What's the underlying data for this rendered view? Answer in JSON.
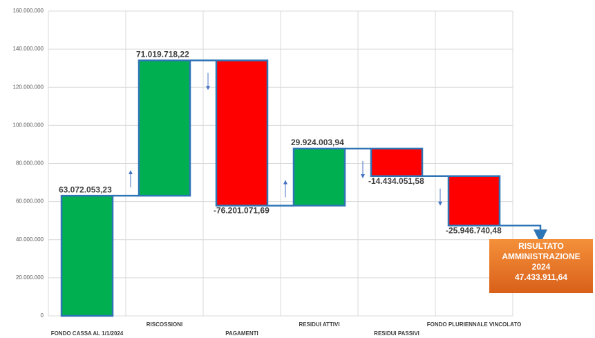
{
  "chart_data": {
    "type": "waterfall",
    "categories": [
      "FONDO CASSA AL 1/1/2024",
      "RISCOSSIONI",
      "PAGAMENTI",
      "RESIDUI ATTIVI",
      "RESIDUI PASSIVI",
      "FONDO PLURIENNALE VINCOLATO"
    ],
    "values": [
      63072053.23,
      71019718.22,
      -76201071.69,
      29924003.94,
      -14434051.58,
      -25946740.48
    ],
    "value_labels": [
      "63.072.053,23",
      "71.019.718,22",
      "-76.201.071,69",
      "29.924.003,94",
      "-14.434.051,58",
      "-25.946.740,48"
    ],
    "positive_color": "#00b050",
    "negative_color": "#ff0000",
    "outline_color": "#2e75b6",
    "ylim": [
      0,
      160000000
    ],
    "yticks": [
      0,
      {
        "value": 20000000,
        "label": "20.000.000"
      },
      {
        "value": 40000000,
        "label": "40.000.000"
      },
      {
        "value": 60000000,
        "label": "60.000.000"
      },
      {
        "value": 80000000,
        "label": "80.000.000"
      },
      {
        "value": 100000000,
        "label": "100.000.000"
      },
      {
        "value": 120000000,
        "label": "120.000.000"
      },
      {
        "value": 140000000,
        "label": "140.000.000"
      },
      {
        "value": 160000000,
        "label": "160.000.000"
      }
    ],
    "grid": true,
    "result": {
      "lines": [
        "RISULTATO",
        "AMMINISTRAZIONE",
        "2024"
      ],
      "value": 47433911.64,
      "value_label": "47.433.911,64"
    }
  }
}
